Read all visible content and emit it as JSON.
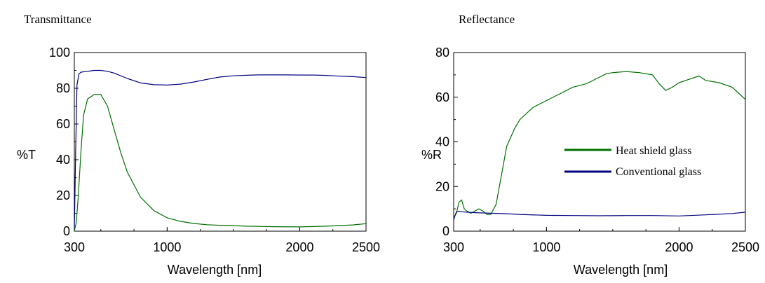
{
  "chart_data": [
    {
      "type": "line",
      "title": "Transmittance",
      "xlabel": "Wavelength [nm]",
      "ylabel": "%T",
      "xlim": [
        300,
        2500
      ],
      "ylim": [
        0,
        100
      ],
      "xticks": [
        300,
        1000,
        2000,
        2500
      ],
      "yticks": [
        0,
        20,
        40,
        60,
        80,
        100
      ],
      "series": [
        {
          "color": "#000080",
          "x": [
            300,
            310,
            320,
            335,
            350,
            400,
            450,
            500,
            550,
            600,
            700,
            800,
            900,
            1000,
            1100,
            1200,
            1300,
            1400,
            1500,
            1600,
            1700,
            1800,
            1900,
            2000,
            2100,
            2200,
            2300,
            2400,
            2500
          ],
          "y": [
            0,
            45,
            82,
            88,
            89,
            89.5,
            90,
            90,
            89.5,
            88.5,
            85.5,
            83,
            82,
            81.8,
            82.3,
            83.5,
            85,
            86.3,
            87,
            87.3,
            87.5,
            87.5,
            87.5,
            87.4,
            87.4,
            87.2,
            86.8,
            86.5,
            86
          ]
        },
        {
          "color": "#007000",
          "x": [
            300,
            315,
            330,
            350,
            370,
            400,
            450,
            500,
            550,
            600,
            650,
            700,
            800,
            900,
            1000,
            1100,
            1200,
            1300,
            1400,
            1500,
            1600,
            1800,
            2000,
            2200,
            2400,
            2500
          ],
          "y": [
            0,
            5,
            20,
            45,
            65,
            74,
            76.5,
            76.5,
            70,
            57,
            44,
            33,
            19,
            11.5,
            7.5,
            5.5,
            4.3,
            3.6,
            3.3,
            3.1,
            2.8,
            2.5,
            2.4,
            2.8,
            3.5,
            4.2
          ]
        }
      ]
    },
    {
      "type": "line",
      "title": "Reflectance",
      "xlabel": "Wavelength [nm]",
      "ylabel": "%R",
      "xlim": [
        300,
        2500
      ],
      "ylim": [
        0,
        80
      ],
      "xticks": [
        300,
        1000,
        2000,
        2500
      ],
      "yticks": [
        0,
        20,
        40,
        60,
        80
      ],
      "legend": {
        "position": "center-right",
        "entries": [
          {
            "label": "Heat shield glass",
            "color": "#007000"
          },
          {
            "label": "Conventional glass",
            "color": "#000080"
          }
        ]
      },
      "series": [
        {
          "name": "Heat shield glass",
          "color": "#007000",
          "x": [
            300,
            320,
            340,
            360,
            380,
            400,
            430,
            460,
            490,
            520,
            550,
            580,
            620,
            660,
            700,
            760,
            800,
            900,
            1000,
            1100,
            1200,
            1300,
            1400,
            1450,
            1500,
            1600,
            1700,
            1800,
            1850,
            1900,
            1950,
            2000,
            2050,
            2100,
            2150,
            2200,
            2300,
            2400,
            2500
          ],
          "y": [
            6,
            8,
            13,
            14,
            10,
            9,
            8,
            9,
            10,
            9,
            7.5,
            7.5,
            12,
            25,
            38,
            46,
            50,
            55.5,
            58.5,
            61.5,
            64.5,
            66,
            69,
            70.5,
            71,
            71.5,
            71,
            70,
            66,
            63,
            64.5,
            66.5,
            67.5,
            68.5,
            69.5,
            67.5,
            66.5,
            64.5,
            59
          ]
        },
        {
          "name": "Conventional glass",
          "color": "#000080",
          "x": [
            300,
            310,
            320,
            340,
            360,
            400,
            450,
            500,
            600,
            700,
            800,
            1000,
            1200,
            1400,
            1600,
            1800,
            2000,
            2200,
            2400,
            2500
          ],
          "y": [
            5,
            7,
            8.5,
            9,
            8.7,
            8.5,
            8.3,
            8.2,
            8,
            7.8,
            7.5,
            7.1,
            7,
            6.9,
            7,
            7,
            6.8,
            7.3,
            7.9,
            8.5
          ]
        }
      ]
    }
  ]
}
